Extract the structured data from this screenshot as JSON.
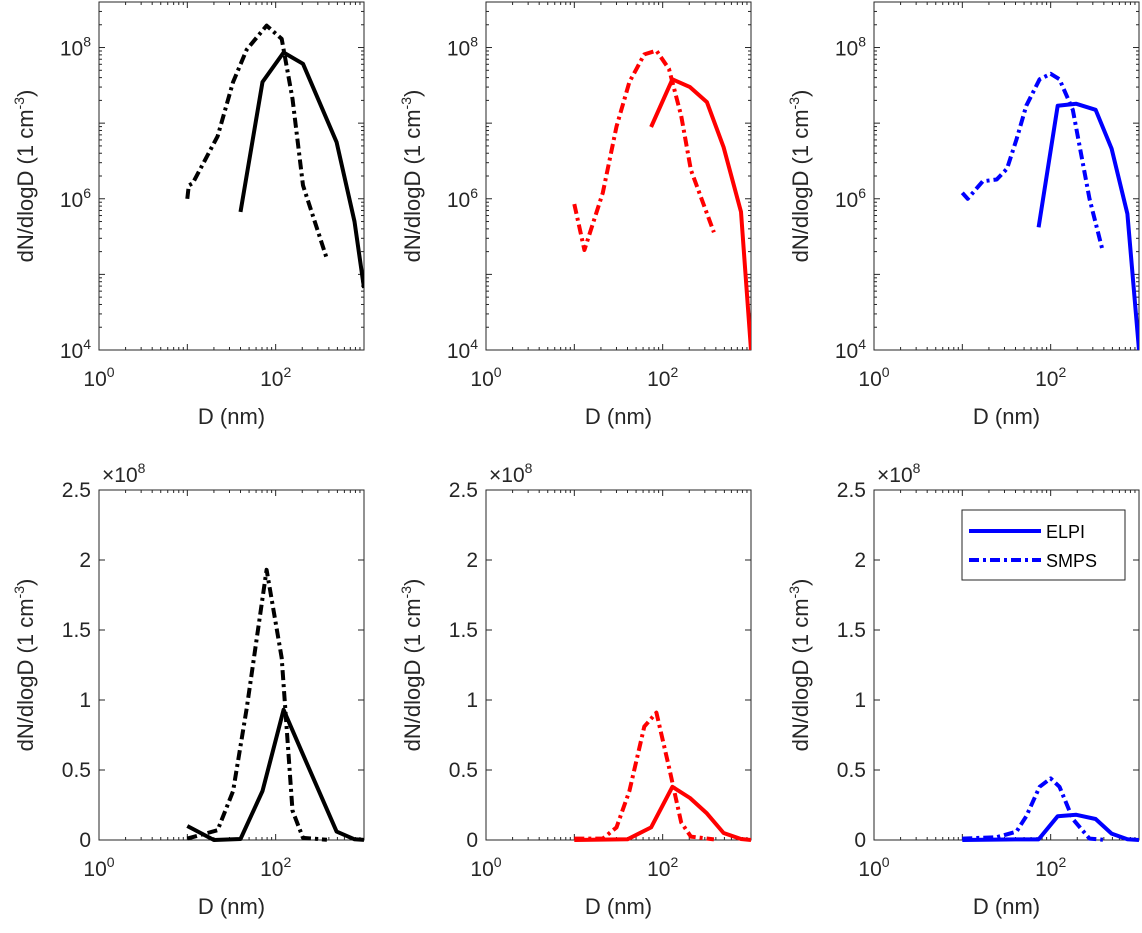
{
  "chart_data": [
    {
      "type": "line",
      "panel": "top-left",
      "yscale": "log",
      "xscale": "log",
      "color": "#000000",
      "xlabel": "D (nm)",
      "ylabel": "dN/dlogD (1 cm^-3)",
      "xlim": [
        1,
        1000
      ],
      "ylim": [
        10000,
        400000000
      ],
      "xticks": [
        {
          "value": 1,
          "label": "10",
          "exp": "0"
        },
        {
          "value": 100,
          "label": "10",
          "exp": "2"
        }
      ],
      "yticks": [
        {
          "value": 10000,
          "label": "10",
          "exp": "4"
        },
        {
          "value": 1000000,
          "label": "10",
          "exp": "6"
        },
        {
          "value": 100000000,
          "label": "10",
          "exp": "8"
        }
      ],
      "series": [
        {
          "name": "ELPI",
          "style": "solid",
          "x": [
            40,
            71,
            123,
            204,
            490,
            780,
            1000
          ],
          "y": [
            670000,
            35000000,
            86000000,
            61000000,
            5600000,
            500000,
            66000
          ]
        },
        {
          "name": "SMPS",
          "style": "dashdot",
          "x": [
            10,
            10.4,
            11.5,
            22,
            33,
            47,
            79,
            117,
            155,
            204,
            380
          ],
          "y": [
            1000000,
            1500000,
            1600000,
            6700000,
            35000000,
            94000000,
            195000000,
            130000000,
            21000000,
            1500000,
            160000
          ]
        }
      ]
    },
    {
      "type": "line",
      "panel": "top-middle",
      "yscale": "log",
      "xscale": "log",
      "color": "#ff0000",
      "xlabel": "D (nm)",
      "ylabel": "dN/dlogD (1 cm^-3)",
      "xlim": [
        1,
        1000
      ],
      "ylim": [
        10000,
        400000000
      ],
      "xticks": [
        {
          "value": 1,
          "label": "10",
          "exp": "0"
        },
        {
          "value": 100,
          "label": "10",
          "exp": "2"
        }
      ],
      "yticks": [
        {
          "value": 10000,
          "label": "10",
          "exp": "4"
        },
        {
          "value": 1000000,
          "label": "10",
          "exp": "6"
        },
        {
          "value": 100000000,
          "label": "10",
          "exp": "8"
        }
      ],
      "series": [
        {
          "name": "ELPI",
          "style": "solid",
          "x": [
            74,
            129,
            204,
            317,
            490,
            770,
            1000
          ],
          "y": [
            8900000,
            38000000,
            30000000,
            19000000,
            4800000,
            670000,
            10000
          ]
        },
        {
          "name": "SMPS",
          "style": "dashdot",
          "x": [
            10,
            13,
            21,
            30,
            42,
            62,
            85,
            118,
            162,
            209,
            380
          ],
          "y": [
            850000,
            210000,
            1200000,
            9000000,
            35000000,
            81000000,
            91000000,
            52000000,
            12500000,
            2400000,
            360000
          ]
        }
      ]
    },
    {
      "type": "line",
      "panel": "top-right",
      "yscale": "log",
      "xscale": "log",
      "color": "#0000ff",
      "xlabel": "D (nm)",
      "ylabel": "dN/dlogD (1 cm^-3)",
      "xlim": [
        1,
        1000
      ],
      "ylim": [
        10000,
        400000000
      ],
      "xticks": [
        {
          "value": 1,
          "label": "10",
          "exp": "0"
        },
        {
          "value": 100,
          "label": "10",
          "exp": "2"
        }
      ],
      "yticks": [
        {
          "value": 10000,
          "label": "10",
          "exp": "4"
        },
        {
          "value": 1000000,
          "label": "10",
          "exp": "6"
        },
        {
          "value": 100000000,
          "label": "10",
          "exp": "8"
        }
      ],
      "series": [
        {
          "name": "ELPI",
          "style": "solid",
          "x": [
            73,
            120,
            195,
            323,
            490,
            740,
            1000
          ],
          "y": [
            420000,
            17000000,
            18000000,
            15000000,
            4600000,
            630000,
            10000
          ]
        },
        {
          "name": "SMPS",
          "style": "dashdot",
          "x": [
            10,
            11.5,
            17,
            24.5,
            32,
            41,
            53,
            75,
            100,
            126,
            178,
            275,
            390
          ],
          "y": [
            1200000,
            1000000,
            1700000,
            1800000,
            2500000,
            6100000,
            17000000,
            38000000,
            45000000,
            38000000,
            15000000,
            1000000,
            200000
          ]
        }
      ]
    },
    {
      "type": "line",
      "panel": "bottom-left",
      "yscale": "linear",
      "xscale": "log",
      "color": "#000000",
      "xlabel": "D (nm)",
      "ylabel": "dN/dlogD (1 cm^-3)",
      "xlim": [
        1,
        1000
      ],
      "ylim": [
        0,
        2.5
      ],
      "multiplier": "×10",
      "multiplier_exp": "8",
      "xticks": [
        {
          "value": 1,
          "label": "10",
          "exp": "0"
        },
        {
          "value": 100,
          "label": "10",
          "exp": "2"
        }
      ],
      "yticks": [
        {
          "value": 0,
          "label": "0"
        },
        {
          "value": 0.5,
          "label": "0.5"
        },
        {
          "value": 1,
          "label": "1"
        },
        {
          "value": 1.5,
          "label": "1.5"
        },
        {
          "value": 2,
          "label": "2"
        },
        {
          "value": 2.5,
          "label": "2.5"
        }
      ],
      "series": [
        {
          "name": "ELPI",
          "style": "solid",
          "x": [
            10,
            20,
            40,
            71,
            123,
            204,
            490,
            780,
            1000
          ],
          "y": [
            0.1,
            0.0,
            0.007,
            0.35,
            0.93,
            0.61,
            0.06,
            0.005,
            0.0007
          ]
        },
        {
          "name": "SMPS",
          "style": "dashdot",
          "x": [
            10,
            22,
            33,
            47,
            79,
            117,
            155,
            204,
            380
          ],
          "y": [
            0.01,
            0.07,
            0.35,
            0.94,
            1.93,
            1.3,
            0.21,
            0.015,
            0.002
          ]
        }
      ]
    },
    {
      "type": "line",
      "panel": "bottom-middle",
      "yscale": "linear",
      "xscale": "log",
      "color": "#ff0000",
      "xlabel": "D (nm)",
      "ylabel": "dN/dlogD (1 cm^-3)",
      "xlim": [
        1,
        1000
      ],
      "ylim": [
        0,
        2.5
      ],
      "multiplier": "×10",
      "multiplier_exp": "8",
      "xticks": [
        {
          "value": 1,
          "label": "10",
          "exp": "0"
        },
        {
          "value": 100,
          "label": "10",
          "exp": "2"
        }
      ],
      "yticks": [
        {
          "value": 0,
          "label": "0"
        },
        {
          "value": 0.5,
          "label": "0.5"
        },
        {
          "value": 1,
          "label": "1"
        },
        {
          "value": 1.5,
          "label": "1.5"
        },
        {
          "value": 2,
          "label": "2"
        },
        {
          "value": 2.5,
          "label": "2.5"
        }
      ],
      "series": [
        {
          "name": "ELPI",
          "style": "solid",
          "x": [
            10,
            40,
            74,
            129,
            204,
            317,
            490,
            770,
            1000
          ],
          "y": [
            0,
            0.005,
            0.09,
            0.38,
            0.3,
            0.19,
            0.05,
            0.007,
            0
          ]
        },
        {
          "name": "SMPS",
          "style": "dashdot",
          "x": [
            10,
            21,
            30,
            42,
            62,
            85,
            118,
            162,
            209,
            380
          ],
          "y": [
            0.01,
            0.01,
            0.09,
            0.35,
            0.81,
            0.91,
            0.52,
            0.125,
            0.024,
            0.004
          ]
        }
      ]
    },
    {
      "type": "line",
      "panel": "bottom-right",
      "yscale": "linear",
      "xscale": "log",
      "color": "#0000ff",
      "xlabel": "D (nm)",
      "ylabel": "dN/dlogD (1 cm^-3)",
      "xlim": [
        1,
        1000
      ],
      "ylim": [
        0,
        2.5
      ],
      "multiplier": "×10",
      "multiplier_exp": "8",
      "xticks": [
        {
          "value": 1,
          "label": "10",
          "exp": "0"
        },
        {
          "value": 100,
          "label": "10",
          "exp": "2"
        }
      ],
      "yticks": [
        {
          "value": 0,
          "label": "0"
        },
        {
          "value": 0.5,
          "label": "0.5"
        },
        {
          "value": 1,
          "label": "1"
        },
        {
          "value": 1.5,
          "label": "1.5"
        },
        {
          "value": 2,
          "label": "2"
        },
        {
          "value": 2.5,
          "label": "2.5"
        }
      ],
      "series": [
        {
          "name": "ELPI",
          "style": "solid",
          "x": [
            10,
            40,
            73,
            120,
            195,
            323,
            490,
            740,
            1000
          ],
          "y": [
            0,
            0.004,
            0.004,
            0.17,
            0.18,
            0.15,
            0.046,
            0.006,
            0
          ]
        },
        {
          "name": "SMPS",
          "style": "dashdot",
          "x": [
            10,
            24.5,
            41,
            53,
            75,
            100,
            126,
            178,
            275,
            390
          ],
          "y": [
            0.01,
            0.02,
            0.06,
            0.17,
            0.38,
            0.44,
            0.38,
            0.15,
            0.01,
            0.002
          ]
        }
      ]
    }
  ],
  "legend": {
    "placement": "top-right",
    "entries": [
      "ELPI",
      "SMPS"
    ]
  }
}
